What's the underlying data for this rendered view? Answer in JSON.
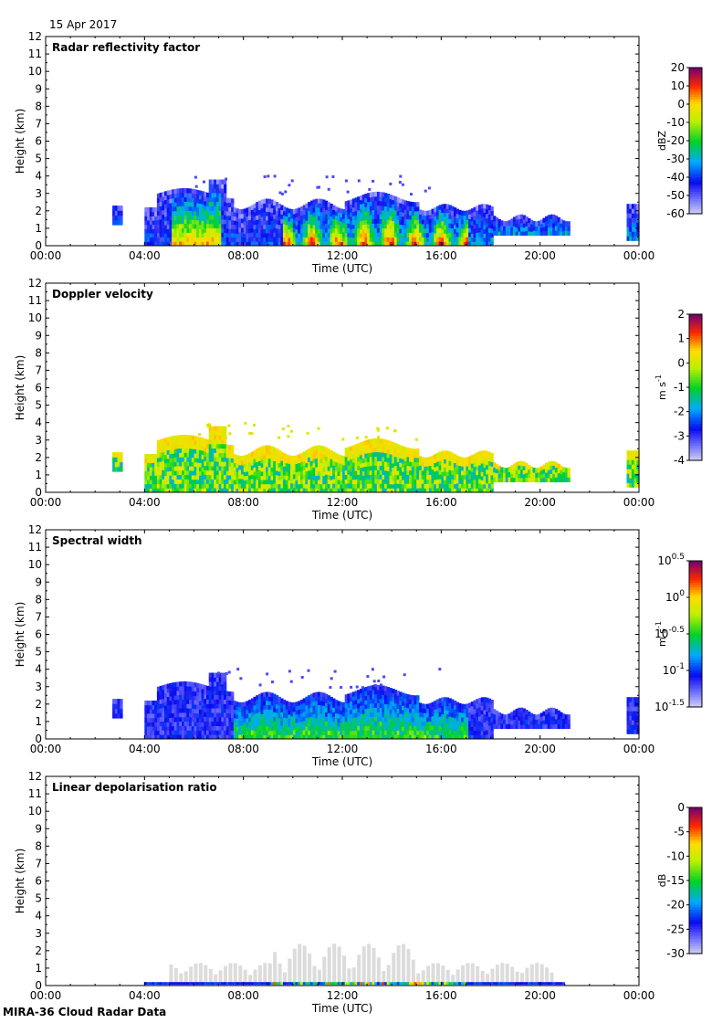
{
  "header": {
    "date": "15 Apr 2017"
  },
  "footer": {
    "label": "MIRA-36 Cloud Radar Data"
  },
  "chart_data": [
    {
      "type": "heatmap",
      "title": "Radar reflectivity factor",
      "xlabel": "Time (UTC)",
      "ylabel": "Height (km)",
      "x_ticks": [
        "00:00",
        "04:00",
        "08:00",
        "12:00",
        "16:00",
        "20:00",
        "00:00"
      ],
      "y_ticks": [
        "0",
        "1",
        "2",
        "3",
        "4",
        "5",
        "6",
        "7",
        "8",
        "9",
        "10",
        "11",
        "12"
      ],
      "xlim_hours": [
        0,
        24
      ],
      "ylim_km": [
        0,
        12
      ],
      "colorbar": {
        "unit": "dBZ",
        "ticks": [
          "20",
          "10",
          "0",
          "-10",
          "-20",
          "-30",
          "-40",
          "-50",
          "-60"
        ],
        "range": [
          -60,
          20
        ]
      },
      "cloud_field": {
        "segments": [
          {
            "start_h": 2.7,
            "end_h": 3.1,
            "base_km": 1.2,
            "top_km": 2.4
          },
          {
            "start_h": 4.0,
            "end_h": 21.2,
            "base_km": 0.0,
            "top_km": 3.3
          },
          {
            "start_h": 23.5,
            "end_h": 24.0,
            "base_km": 0.3,
            "top_km": 2.6
          }
        ],
        "max_top_km": 4.2,
        "peak_value": 15
      }
    },
    {
      "type": "heatmap",
      "title": "Doppler velocity",
      "xlabel": "Time (UTC)",
      "ylabel": "Height (km)",
      "x_ticks": [
        "00:00",
        "04:00",
        "08:00",
        "12:00",
        "16:00",
        "20:00",
        "00:00"
      ],
      "y_ticks": [
        "0",
        "1",
        "2",
        "3",
        "4",
        "5",
        "6",
        "7",
        "8",
        "9",
        "10",
        "11",
        "12"
      ],
      "xlim_hours": [
        0,
        24
      ],
      "ylim_km": [
        0,
        12
      ],
      "colorbar": {
        "unit": "m s-1",
        "ticks": [
          "2",
          "1",
          "0",
          "-1",
          "-2",
          "-3",
          "-4"
        ],
        "range": [
          -4,
          2
        ]
      },
      "cloud_field": {
        "segments": [
          {
            "start_h": 2.7,
            "end_h": 3.1,
            "base_km": 1.2,
            "top_km": 2.4
          },
          {
            "start_h": 4.0,
            "end_h": 21.2,
            "base_km": 0.0,
            "top_km": 3.3
          },
          {
            "start_h": 23.5,
            "end_h": 24.0,
            "base_km": 0.3,
            "top_km": 2.6
          }
        ],
        "max_top_km": 4.2,
        "typical_value": -1.0
      }
    },
    {
      "type": "heatmap",
      "title": "Spectral width",
      "xlabel": "Time (UTC)",
      "ylabel": "Height (km)",
      "x_ticks": [
        "00:00",
        "04:00",
        "08:00",
        "12:00",
        "16:00",
        "20:00",
        "00:00"
      ],
      "y_ticks": [
        "0",
        "1",
        "2",
        "3",
        "4",
        "5",
        "6",
        "7",
        "8",
        "9",
        "10",
        "11",
        "12"
      ],
      "xlim_hours": [
        0,
        24
      ],
      "ylim_km": [
        0,
        12
      ],
      "colorbar": {
        "unit": "m s-1",
        "scale": "log10",
        "ticks": [
          {
            "base": "10",
            "exp": "0.5"
          },
          {
            "base": "10",
            "exp": "0"
          },
          {
            "base": "10",
            "exp": "-0.5"
          },
          {
            "base": "10",
            "exp": "-1"
          },
          {
            "base": "10",
            "exp": "-1.5"
          }
        ],
        "range": [
          -1.5,
          0.5
        ]
      },
      "cloud_field": {
        "segments": [
          {
            "start_h": 2.7,
            "end_h": 3.1,
            "base_km": 1.2,
            "top_km": 2.4
          },
          {
            "start_h": 4.0,
            "end_h": 21.2,
            "base_km": 0.0,
            "top_km": 3.3
          },
          {
            "start_h": 23.5,
            "end_h": 24.0,
            "base_km": 0.3,
            "top_km": 2.6
          }
        ],
        "max_top_km": 4.2,
        "typical_value": -0.8
      }
    },
    {
      "type": "heatmap",
      "title": "Linear depolarisation ratio",
      "xlabel": "Time (UTC)",
      "ylabel": "Height (km)",
      "x_ticks": [
        "00:00",
        "04:00",
        "08:00",
        "12:00",
        "16:00",
        "20:00",
        "00:00"
      ],
      "y_ticks": [
        "0",
        "1",
        "2",
        "3",
        "4",
        "5",
        "6",
        "7",
        "8",
        "9",
        "10",
        "11",
        "12"
      ],
      "xlim_hours": [
        0,
        24
      ],
      "ylim_km": [
        0,
        12
      ],
      "colorbar": {
        "unit": "dB",
        "ticks": [
          "0",
          "-5",
          "-10",
          "-15",
          "-20",
          "-25",
          "-30"
        ],
        "range": [
          -30,
          0
        ]
      },
      "cloud_field": {
        "gray_region": {
          "start_h": 5.0,
          "end_h": 20.5,
          "top_km": 2.6
        },
        "surface_band": {
          "start_h": 4.0,
          "end_h": 21.0,
          "top_km": 0.2
        }
      }
    }
  ]
}
